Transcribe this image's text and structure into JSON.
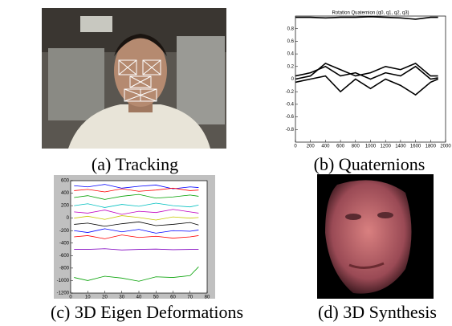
{
  "chart_data": [
    {
      "type": "line",
      "title": "Rotation Quaternion (q0, q1, q2, q3)",
      "caption": "(b) Quaternions",
      "x": [
        0,
        200,
        400,
        600,
        800,
        1000,
        1200,
        1400,
        1600,
        1800,
        1900
      ],
      "series": [
        {
          "color": "#000000",
          "values": [
            0.98,
            0.98,
            0.97,
            0.98,
            0.98,
            0.99,
            0.98,
            0.97,
            0.95,
            0.98,
            0.98
          ]
        },
        {
          "color": "#000000",
          "values": [
            0,
            0.05,
            0.25,
            0.15,
            0.05,
            0.1,
            0.2,
            0.15,
            0.25,
            0.05,
            0.05
          ]
        },
        {
          "color": "#000000",
          "values": [
            0.05,
            0.1,
            0.2,
            0.05,
            0.1,
            0,
            0.1,
            0.05,
            0.2,
            0,
            0.02
          ]
        },
        {
          "color": "#000000",
          "values": [
            -0.05,
            0,
            0.05,
            -0.2,
            0,
            -0.15,
            0,
            -0.1,
            -0.25,
            -0.05,
            0
          ]
        }
      ],
      "xlim": [
        0,
        2000
      ],
      "xticks": [
        0,
        200,
        400,
        600,
        800,
        1000,
        1200,
        1400,
        1600,
        1800,
        2000
      ],
      "ylim": [
        -1,
        1
      ],
      "yticks": [
        -0.8,
        -0.6,
        -0.4,
        -0.2,
        0,
        0.2,
        0.4,
        0.6,
        0.8
      ]
    },
    {
      "type": "line",
      "caption": "(c) 3D Eigen Deformations",
      "x": [
        2,
        10,
        20,
        30,
        40,
        50,
        60,
        70,
        75
      ],
      "series": [
        {
          "color": "#0000ff",
          "values": [
            520,
            500,
            540,
            480,
            510,
            530,
            470,
            500,
            490
          ]
        },
        {
          "color": "#ff0000",
          "values": [
            440,
            460,
            420,
            470,
            430,
            450,
            480,
            440,
            450
          ]
        },
        {
          "color": "#00a000",
          "values": [
            330,
            360,
            300,
            350,
            380,
            320,
            340,
            370,
            350
          ]
        },
        {
          "color": "#00c0c0",
          "values": [
            200,
            230,
            170,
            220,
            190,
            240,
            200,
            180,
            210
          ]
        },
        {
          "color": "#c000c0",
          "values": [
            100,
            80,
            130,
            60,
            110,
            90,
            140,
            100,
            80
          ]
        },
        {
          "color": "#c8c800",
          "values": [
            0,
            30,
            -20,
            40,
            10,
            -30,
            20,
            0,
            10
          ]
        },
        {
          "color": "#000000",
          "values": [
            -100,
            -80,
            -130,
            -90,
            -60,
            -120,
            -100,
            -70,
            -110
          ]
        },
        {
          "color": "#0000ff",
          "values": [
            -200,
            -230,
            -170,
            -220,
            -180,
            -240,
            -200,
            -210,
            -190
          ]
        },
        {
          "color": "#ff0000",
          "values": [
            -300,
            -280,
            -330,
            -270,
            -310,
            -290,
            -320,
            -300,
            -280
          ]
        },
        {
          "color": "#8000c0",
          "values": [
            -500,
            -500,
            -490,
            -510,
            -500,
            -495,
            -505,
            -500,
            -500
          ]
        },
        {
          "color": "#00a000",
          "values": [
            -950,
            -1000,
            -930,
            -960,
            -1010,
            -940,
            -950,
            -920,
            -780
          ]
        }
      ],
      "xlim": [
        0,
        80
      ],
      "xticks": [
        0,
        10,
        20,
        30,
        40,
        50,
        60,
        70,
        80
      ],
      "ylim": [
        -1200,
        600
      ],
      "yticks": [
        -1200,
        -1000,
        -800,
        -600,
        -400,
        -200,
        0,
        200,
        400,
        600
      ]
    }
  ],
  "images": [
    {
      "caption": "(a) Tracking"
    },
    {
      "caption": "(d) 3D Synthesis"
    }
  ]
}
